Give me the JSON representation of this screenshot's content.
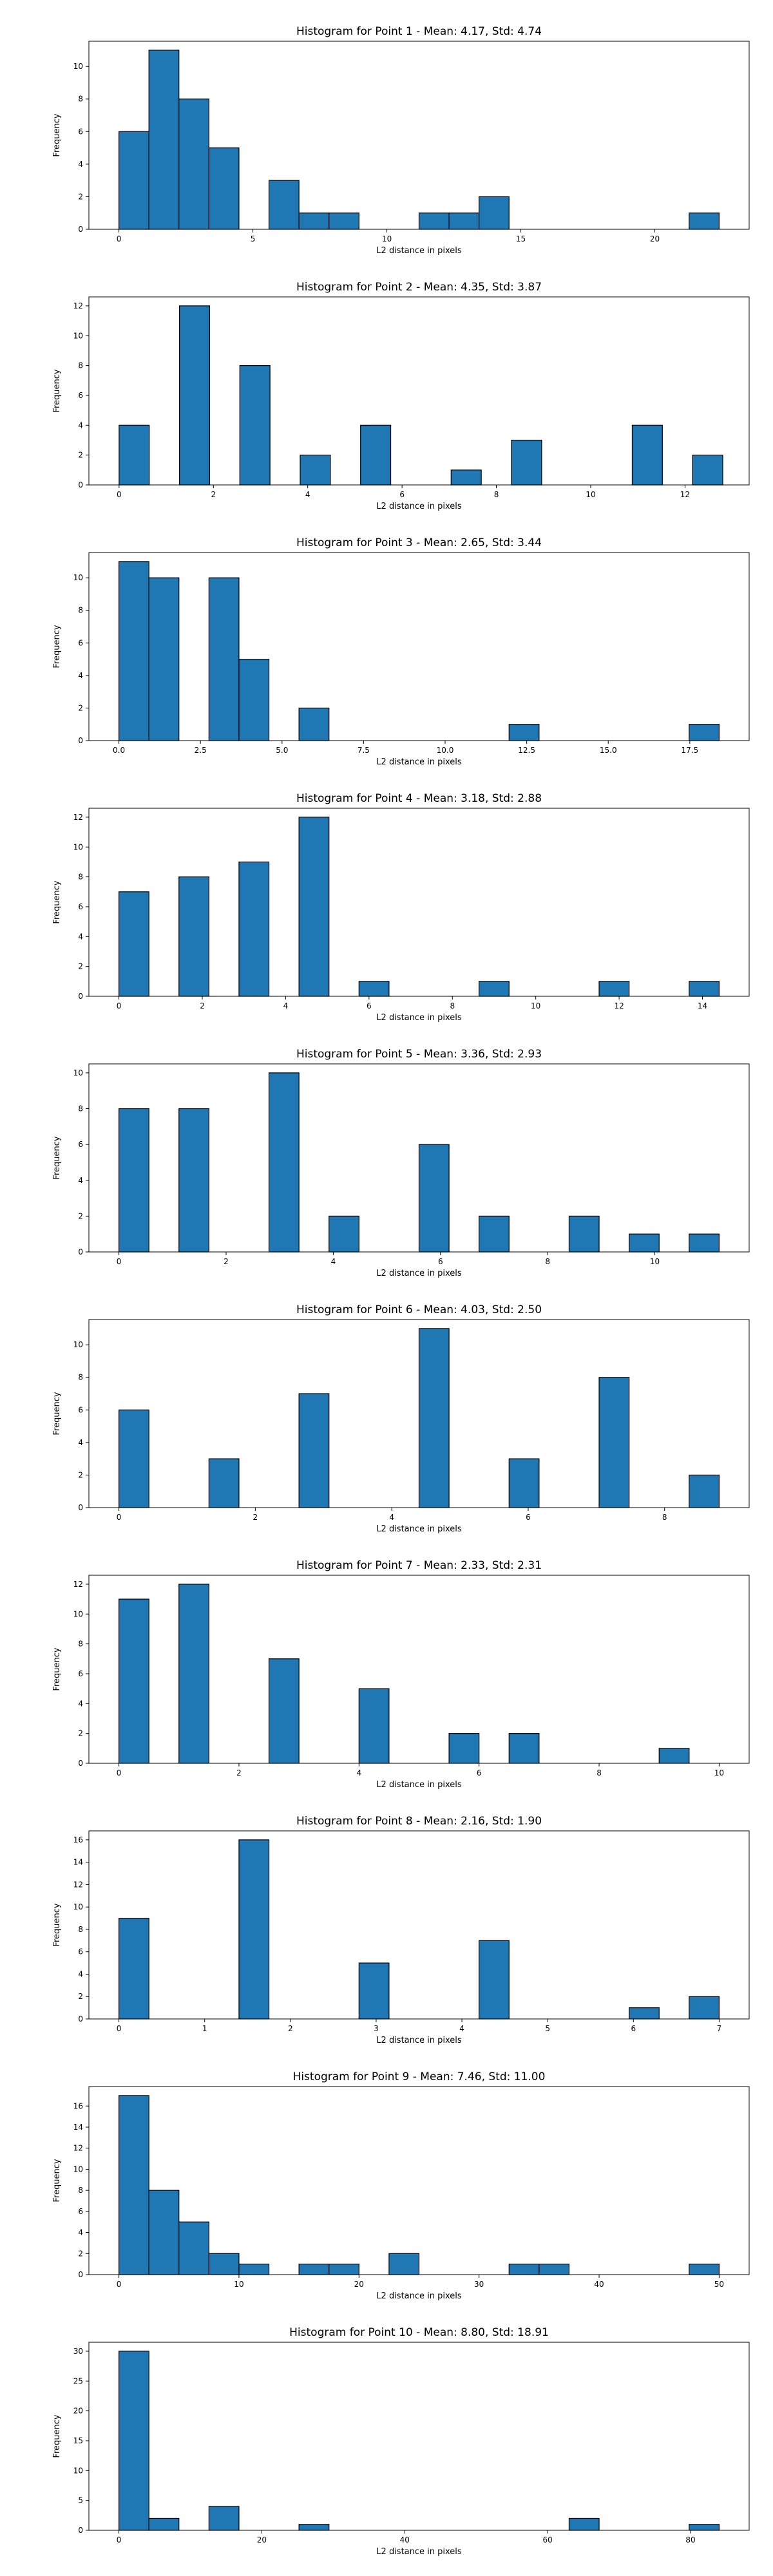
{
  "chart_data": [
    {
      "type": "bar",
      "title": "Histogram for Point 1 - Mean: 4.17, Std: 4.74",
      "xlabel": "L2 distance in pixels",
      "ylabel": "Frequency",
      "xlim": [
        -1.12,
        23.52
      ],
      "ylim": [
        0,
        11.55
      ],
      "xticks": [
        0,
        5,
        10,
        15,
        20
      ],
      "xtick_labels": [
        "0",
        "5",
        "10",
        "15",
        "20"
      ],
      "yticks": [
        0,
        2,
        4,
        6,
        8,
        10
      ],
      "ytick_labels": [
        "0",
        "2",
        "4",
        "6",
        "8",
        "10"
      ],
      "bin_edges": [
        0.0,
        1.12,
        2.24,
        3.36,
        4.48,
        5.6,
        6.72,
        7.84,
        8.96,
        10.08,
        11.2,
        12.32,
        13.44,
        14.56,
        15.68,
        16.8,
        17.92,
        19.04,
        20.16,
        21.28,
        22.4
      ],
      "values": [
        6,
        11,
        8,
        5,
        0,
        3,
        1,
        1,
        0,
        0,
        1,
        1,
        2,
        0,
        0,
        0,
        0,
        0,
        0,
        1
      ]
    },
    {
      "type": "bar",
      "title": "Histogram for Point 2 - Mean: 4.35, Std: 3.87",
      "xlabel": "L2 distance in pixels",
      "ylabel": "Frequency",
      "xlim": [
        -0.64,
        13.36
      ],
      "ylim": [
        0,
        12.6
      ],
      "xticks": [
        0,
        2,
        4,
        6,
        8,
        10,
        12
      ],
      "xtick_labels": [
        "0",
        "2",
        "4",
        "6",
        "8",
        "10",
        "12"
      ],
      "yticks": [
        0,
        2,
        4,
        6,
        8,
        10,
        12
      ],
      "ytick_labels": [
        "0",
        "2",
        "4",
        "6",
        "8",
        "10",
        "12"
      ],
      "bin_edges": [
        0.0,
        0.64,
        1.28,
        1.92,
        2.56,
        3.2,
        3.84,
        4.48,
        5.12,
        5.76,
        6.4,
        7.04,
        7.68,
        8.32,
        8.96,
        9.6,
        10.24,
        10.88,
        11.52,
        12.16,
        12.8
      ],
      "values": [
        4,
        0,
        12,
        0,
        8,
        0,
        2,
        0,
        4,
        0,
        0,
        1,
        0,
        3,
        0,
        0,
        0,
        4,
        0,
        2
      ]
    },
    {
      "type": "bar",
      "title": "Histogram for Point 3 - Mean: 2.65, Std: 3.44",
      "xlabel": "L2 distance in pixels",
      "ylabel": "Frequency",
      "xlim": [
        -0.92,
        19.32
      ],
      "ylim": [
        0,
        11.55
      ],
      "xticks": [
        0,
        2.5,
        5,
        7.5,
        10,
        12.5,
        15,
        17.5
      ],
      "xtick_labels": [
        "0.0",
        "2.5",
        "5.0",
        "7.5",
        "10.0",
        "12.5",
        "15.0",
        "17.5"
      ],
      "yticks": [
        0,
        2,
        4,
        6,
        8,
        10
      ],
      "ytick_labels": [
        "0",
        "2",
        "4",
        "6",
        "8",
        "10"
      ],
      "bin_edges": [
        0.0,
        0.92,
        1.84,
        2.76,
        3.68,
        4.6,
        5.52,
        6.44,
        7.36,
        8.28,
        9.2,
        10.12,
        11.04,
        11.96,
        12.88,
        13.8,
        14.72,
        15.64,
        16.56,
        17.48,
        18.4
      ],
      "values": [
        11,
        10,
        0,
        10,
        5,
        0,
        2,
        0,
        0,
        0,
        0,
        0,
        0,
        1,
        0,
        0,
        0,
        0,
        0,
        1
      ]
    },
    {
      "type": "bar",
      "title": "Histogram for Point 4 - Mean: 3.18, Std: 2.88",
      "xlabel": "L2 distance in pixels",
      "ylabel": "Frequency",
      "xlim": [
        -0.72,
        15.12
      ],
      "ylim": [
        0,
        12.6
      ],
      "xticks": [
        0,
        2,
        4,
        6,
        8,
        10,
        12,
        14
      ],
      "xtick_labels": [
        "0",
        "2",
        "4",
        "6",
        "8",
        "10",
        "12",
        "14"
      ],
      "yticks": [
        0,
        2,
        4,
        6,
        8,
        10,
        12
      ],
      "ytick_labels": [
        "0",
        "2",
        "4",
        "6",
        "8",
        "10",
        "12"
      ],
      "bin_edges": [
        0.0,
        0.72,
        1.44,
        2.16,
        2.88,
        3.6,
        4.32,
        5.04,
        5.76,
        6.48,
        7.2,
        7.92,
        8.64,
        9.36,
        10.08,
        10.8,
        11.52,
        12.24,
        12.96,
        13.68,
        14.4
      ],
      "values": [
        7,
        0,
        8,
        0,
        9,
        0,
        12,
        0,
        1,
        0,
        0,
        0,
        1,
        0,
        0,
        0,
        1,
        0,
        0,
        1
      ]
    },
    {
      "type": "bar",
      "title": "Histogram for Point 5 - Mean: 3.36, Std: 2.93",
      "xlabel": "L2 distance in pixels",
      "ylabel": "Frequency",
      "xlim": [
        -0.56,
        11.76
      ],
      "ylim": [
        0,
        10.5
      ],
      "xticks": [
        0,
        2,
        4,
        6,
        8,
        10
      ],
      "xtick_labels": [
        "0",
        "2",
        "4",
        "6",
        "8",
        "10"
      ],
      "yticks": [
        0,
        2,
        4,
        6,
        8,
        10
      ],
      "ytick_labels": [
        "0",
        "2",
        "4",
        "6",
        "8",
        "10"
      ],
      "bin_edges": [
        0.0,
        0.56,
        1.12,
        1.68,
        2.24,
        2.8,
        3.36,
        3.92,
        4.48,
        5.04,
        5.6,
        6.16,
        6.72,
        7.28,
        7.84,
        8.4,
        8.96,
        9.52,
        10.08,
        10.64,
        11.2
      ],
      "values": [
        8,
        0,
        8,
        0,
        0,
        10,
        0,
        2,
        0,
        0,
        6,
        0,
        2,
        0,
        0,
        2,
        0,
        1,
        0,
        1
      ]
    },
    {
      "type": "bar",
      "title": "Histogram for Point 6 - Mean: 4.03, Std: 2.50",
      "xlabel": "L2 distance in pixels",
      "ylabel": "Frequency",
      "xlim": [
        -0.44,
        9.24
      ],
      "ylim": [
        0,
        11.55
      ],
      "xticks": [
        0,
        2,
        4,
        6,
        8
      ],
      "xtick_labels": [
        "0",
        "2",
        "4",
        "6",
        "8"
      ],
      "yticks": [
        0,
        2,
        4,
        6,
        8,
        10
      ],
      "ytick_labels": [
        "0",
        "2",
        "4",
        "6",
        "8",
        "10"
      ],
      "bin_edges": [
        0.0,
        0.44,
        0.88,
        1.32,
        1.76,
        2.2,
        2.64,
        3.08,
        3.52,
        3.96,
        4.4,
        4.84,
        5.28,
        5.72,
        6.16,
        6.6,
        7.04,
        7.48,
        7.92,
        8.36,
        8.8
      ],
      "values": [
        6,
        0,
        0,
        3,
        0,
        0,
        7,
        0,
        0,
        0,
        11,
        0,
        0,
        3,
        0,
        0,
        8,
        0,
        0,
        2
      ]
    },
    {
      "type": "bar",
      "title": "Histogram for Point 7 - Mean: 2.33, Std: 2.31",
      "xlabel": "L2 distance in pixels",
      "ylabel": "Frequency",
      "xlim": [
        -0.5,
        10.5
      ],
      "ylim": [
        0,
        12.6
      ],
      "xticks": [
        0,
        2,
        4,
        6,
        8,
        10
      ],
      "xtick_labels": [
        "0",
        "2",
        "4",
        "6",
        "8",
        "10"
      ],
      "yticks": [
        0,
        2,
        4,
        6,
        8,
        10,
        12
      ],
      "ytick_labels": [
        "0",
        "2",
        "4",
        "6",
        "8",
        "10",
        "12"
      ],
      "bin_edges": [
        0.0,
        0.5,
        1.0,
        1.5,
        2.0,
        2.5,
        3.0,
        3.5,
        4.0,
        4.5,
        5.0,
        5.5,
        6.0,
        6.5,
        7.0,
        7.5,
        8.0,
        8.5,
        9.0,
        9.5,
        10.0
      ],
      "values": [
        11,
        0,
        12,
        0,
        0,
        7,
        0,
        0,
        5,
        0,
        0,
        2,
        0,
        2,
        0,
        0,
        0,
        0,
        1,
        0
      ]
    },
    {
      "type": "bar",
      "title": "Histogram for Point 8 - Mean: 2.16, Std: 1.90",
      "xlabel": "L2 distance in pixels",
      "ylabel": "Frequency",
      "xlim": [
        -0.35,
        7.35
      ],
      "ylim": [
        0,
        16.8
      ],
      "xticks": [
        0,
        1,
        2,
        3,
        4,
        5,
        6,
        7
      ],
      "xtick_labels": [
        "0",
        "1",
        "2",
        "3",
        "4",
        "5",
        "6",
        "7"
      ],
      "yticks": [
        0,
        2,
        4,
        6,
        8,
        10,
        12,
        14,
        16
      ],
      "ytick_labels": [
        "0",
        "2",
        "4",
        "6",
        "8",
        "10",
        "12",
        "14",
        "16"
      ],
      "bin_edges": [
        0.0,
        0.35,
        0.7,
        1.05,
        1.4,
        1.75,
        2.1,
        2.45,
        2.8,
        3.15,
        3.5,
        3.85,
        4.2,
        4.55,
        4.9,
        5.25,
        5.6,
        5.95,
        6.3,
        6.65,
        7.0
      ],
      "values": [
        9,
        0,
        0,
        0,
        16,
        0,
        0,
        0,
        5,
        0,
        0,
        0,
        7,
        0,
        0,
        0,
        0,
        1,
        0,
        2
      ]
    },
    {
      "type": "bar",
      "title": "Histogram for Point 9 - Mean: 7.46, Std: 11.00",
      "xlabel": "L2 distance in pixels",
      "ylabel": "Frequency",
      "xlim": [
        -2.5,
        52.5
      ],
      "ylim": [
        0,
        17.85
      ],
      "xticks": [
        0,
        10,
        20,
        30,
        40,
        50
      ],
      "xtick_labels": [
        "0",
        "10",
        "20",
        "30",
        "40",
        "50"
      ],
      "yticks": [
        0,
        2,
        4,
        6,
        8,
        10,
        12,
        14,
        16
      ],
      "ytick_labels": [
        "0",
        "2",
        "4",
        "6",
        "8",
        "10",
        "12",
        "14",
        "16"
      ],
      "bin_edges": [
        0.0,
        2.5,
        5.0,
        7.5,
        10.0,
        12.5,
        15.0,
        17.5,
        20.0,
        22.5,
        25.0,
        27.5,
        30.0,
        32.5,
        35.0,
        37.5,
        40.0,
        42.5,
        45.0,
        47.5,
        50.0
      ],
      "values": [
        17,
        8,
        5,
        2,
        1,
        0,
        1,
        1,
        0,
        2,
        0,
        0,
        0,
        1,
        1,
        0,
        0,
        0,
        0,
        1
      ]
    },
    {
      "type": "bar",
      "title": "Histogram for Point 10 - Mean: 8.80, Std: 18.91",
      "xlabel": "L2 distance in pixels",
      "ylabel": "Frequency",
      "xlim": [
        -4.2,
        88.2
      ],
      "ylim": [
        0,
        31.5
      ],
      "xticks": [
        0,
        20,
        40,
        60,
        80
      ],
      "xtick_labels": [
        "0",
        "20",
        "40",
        "60",
        "80"
      ],
      "yticks": [
        0,
        5,
        10,
        15,
        20,
        25,
        30
      ],
      "ytick_labels": [
        "0",
        "5",
        "10",
        "15",
        "20",
        "25",
        "30"
      ],
      "bin_edges": [
        0.0,
        4.2,
        8.4,
        12.6,
        16.8,
        21.0,
        25.2,
        29.4,
        33.6,
        37.8,
        42.0,
        46.2,
        50.4,
        54.6,
        58.8,
        63.0,
        67.2,
        71.4,
        75.6,
        79.8,
        84.0
      ],
      "values": [
        30,
        2,
        0,
        4,
        0,
        0,
        1,
        0,
        0,
        0,
        0,
        0,
        0,
        0,
        0,
        2,
        0,
        0,
        0,
        1
      ]
    }
  ]
}
